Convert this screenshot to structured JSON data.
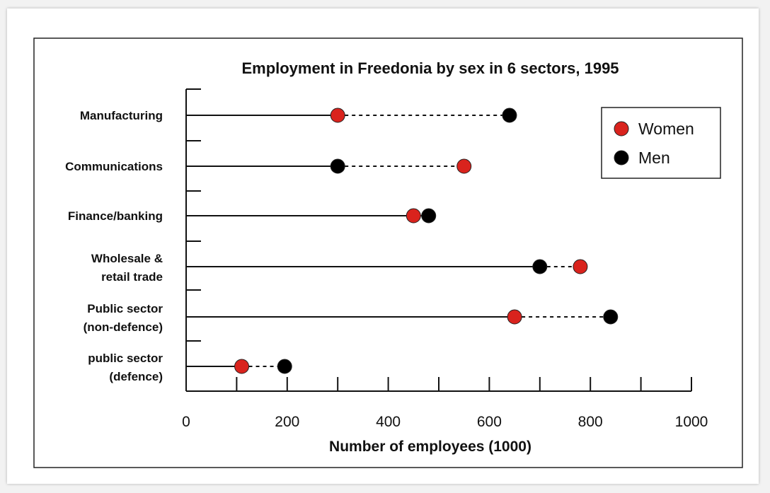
{
  "chart_data": {
    "type": "scatter",
    "title": "Employment in Freedonia by sex in 6 sectors, 1995",
    "xlabel": "Number of employees (1000)",
    "ylabel": "",
    "xlim": [
      0,
      1000
    ],
    "x_ticks": [
      0,
      200,
      400,
      600,
      800,
      1000
    ],
    "grid": false,
    "legend_position": "top-right",
    "categories": [
      [
        "Manufacturing"
      ],
      [
        "Communications"
      ],
      [
        "Finance/banking"
      ],
      [
        "Wholesale &",
        "retail trade"
      ],
      [
        "Public sector",
        "(non-defence)"
      ],
      [
        "public sector",
        "(defence)"
      ]
    ],
    "series": [
      {
        "name": "Women",
        "color": "#d9231d",
        "values": [
          300,
          550,
          450,
          780,
          650,
          110
        ]
      },
      {
        "name": "Men",
        "color": "#000000",
        "values": [
          640,
          300,
          480,
          700,
          840,
          195
        ]
      }
    ]
  }
}
